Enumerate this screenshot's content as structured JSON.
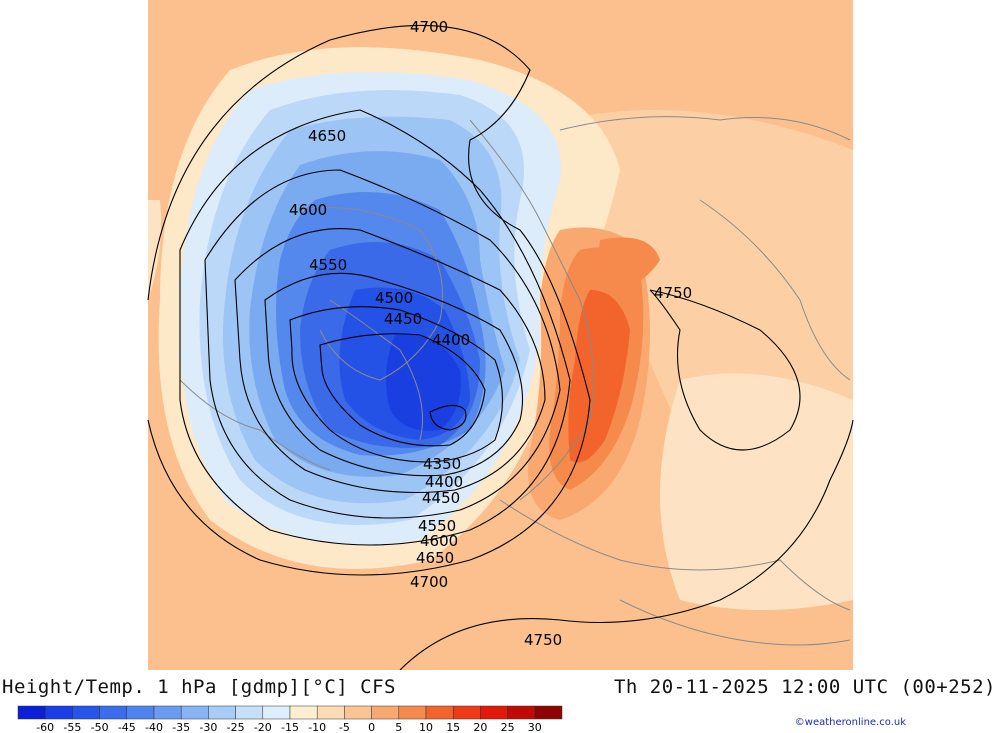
{
  "title": "Height/Temp. 1 hPa [gdmp][°C] CFS",
  "valid_time": "Th 20-11-2025 12:00 UTC (00+252)",
  "credit": "©weatheronline.co.uk",
  "contour_labels": {
    "c4700_top": "4700",
    "c4650_top": "4650",
    "c4600_top": "4600",
    "c4550_top": "4550",
    "c4500_top": "4500",
    "c4450_top": "4450",
    "c4400_top": "4400",
    "c4350_bottom": "4350",
    "c4400_bottom": "4400",
    "c4450_bottom": "4450",
    "c4550_bottom": "4550",
    "c4600_bottom": "4600",
    "c4650_bottom": "4650",
    "c4700_bottom": "4700",
    "c4750_right": "4750",
    "c4750_bottom": "4750"
  },
  "legend": {
    "ticks": [
      "-60",
      "-55",
      "-50",
      "-45",
      "-40",
      "-35",
      "-30",
      "-25",
      "-20",
      "-15",
      "-10",
      "-5",
      "0",
      "5",
      "10",
      "15",
      "20",
      "25",
      "30"
    ],
    "colors": [
      "#0a1fd6",
      "#1a3ee6",
      "#2655ea",
      "#3a6cee",
      "#4f84f0",
      "#6a9cf2",
      "#86b4f4",
      "#a6cdf8",
      "#c6e0fa",
      "#ddeefc",
      "#fdeed2",
      "#fcdcb4",
      "#fbc593",
      "#f9a970",
      "#f68a4c",
      "#f2642c",
      "#ee3a16",
      "#e41808",
      "#c20a04",
      "#8e0402"
    ]
  },
  "colors": {
    "background_warm": "#fbc08e",
    "outer_ring": "#fde8c8",
    "cold_core": "#1e4fe8",
    "warm_core": "#f0521e"
  }
}
